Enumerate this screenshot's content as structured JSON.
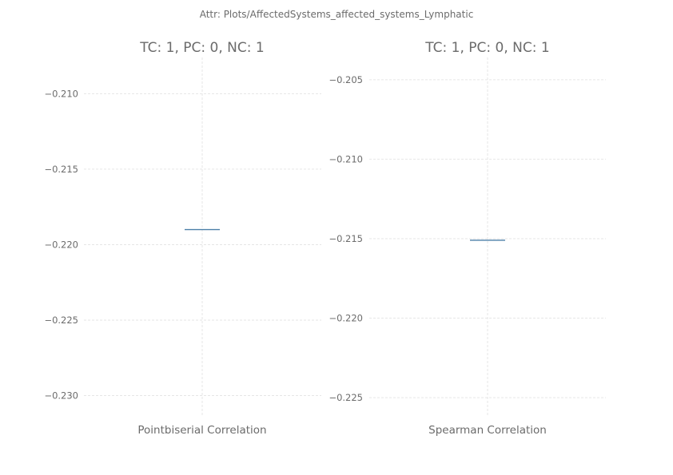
{
  "suptitle": "Attr: Plots/AffectedSystems_affected_systems_Lymphatic",
  "chart_data": [
    {
      "type": "box",
      "title": "TC: 1, PC: 0, NC: 1",
      "xlabel": "Pointbiserial Correlation",
      "categories": [
        "Pointbiserial Correlation"
      ],
      "values": [
        -0.219
      ],
      "yticks": [
        -0.21,
        -0.215,
        -0.22,
        -0.225,
        -0.23
      ],
      "ytick_labels": [
        "−0.210",
        "−0.215",
        "−0.220",
        "−0.225",
        "−0.230"
      ],
      "ylim": [
        -0.2314,
        -0.2076
      ],
      "grid": true,
      "color": "#4c7fa8"
    },
    {
      "type": "box",
      "title": "TC: 1, PC: 0, NC: 1",
      "xlabel": "Spearman Correlation",
      "categories": [
        "Spearman Correlation"
      ],
      "values": [
        -0.2151
      ],
      "yticks": [
        -0.205,
        -0.21,
        -0.215,
        -0.22,
        -0.225
      ],
      "ytick_labels": [
        "−0.205",
        "−0.210",
        "−0.215",
        "−0.220",
        "−0.225"
      ],
      "ylim": [
        -0.2262,
        -0.2036
      ],
      "grid": true,
      "color": "#4c7fa8"
    }
  ]
}
